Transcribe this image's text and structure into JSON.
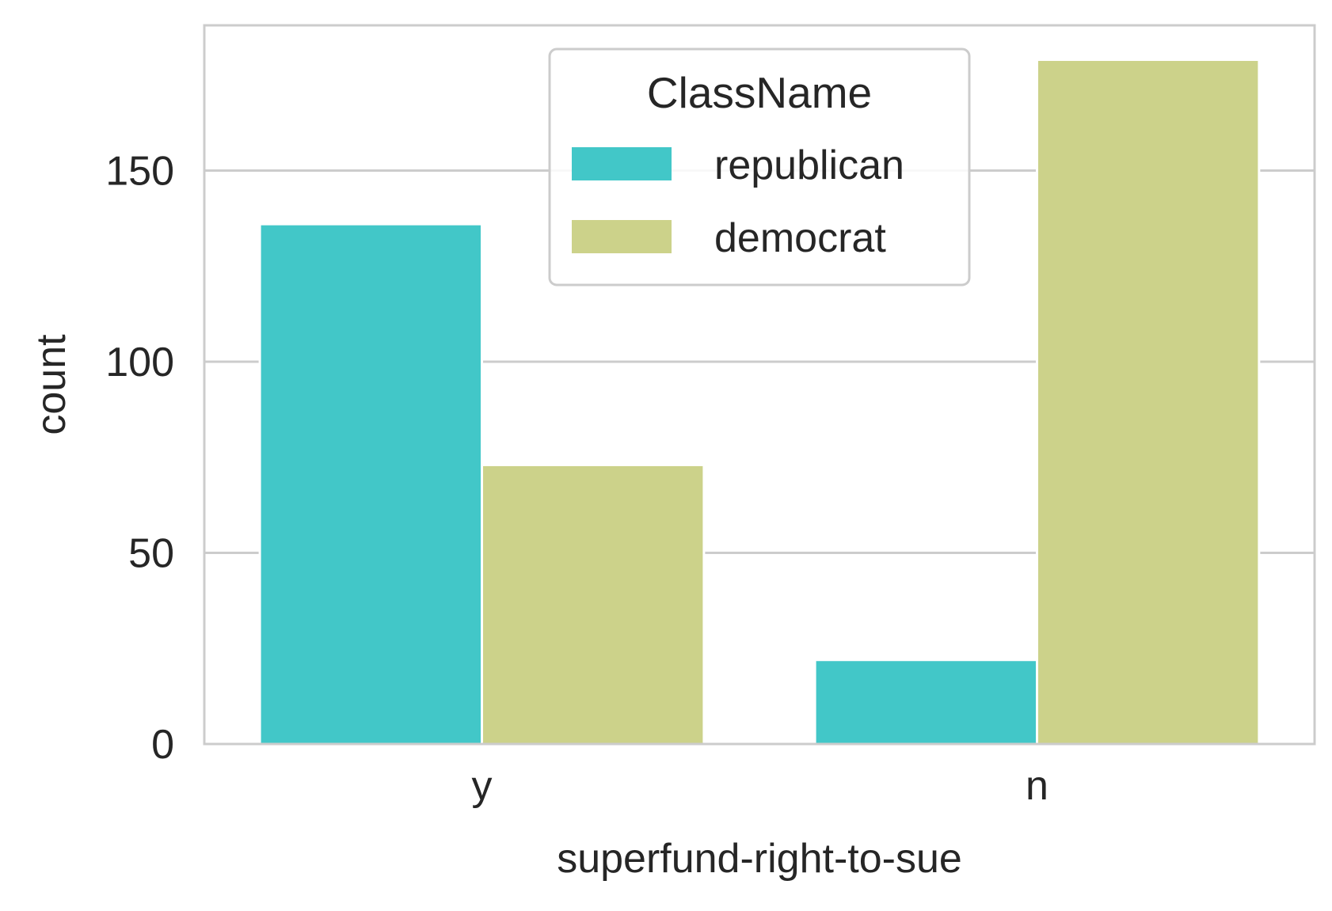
{
  "chart_data": {
    "type": "bar",
    "title": "",
    "xlabel": "superfund-right-to-sue",
    "ylabel": "count",
    "categories": [
      "y",
      "n"
    ],
    "series": [
      {
        "name": "republican",
        "values": [
          136,
          22
        ],
        "color": "#42C7C8"
      },
      {
        "name": "democrat",
        "values": [
          73,
          179
        ],
        "color": "#CCD28A"
      }
    ],
    "ylim": [
      0,
      188
    ],
    "yticks": [
      0,
      50,
      100,
      150
    ],
    "grid": true,
    "legend": {
      "title": "ClassName",
      "placement": "top-center"
    }
  }
}
